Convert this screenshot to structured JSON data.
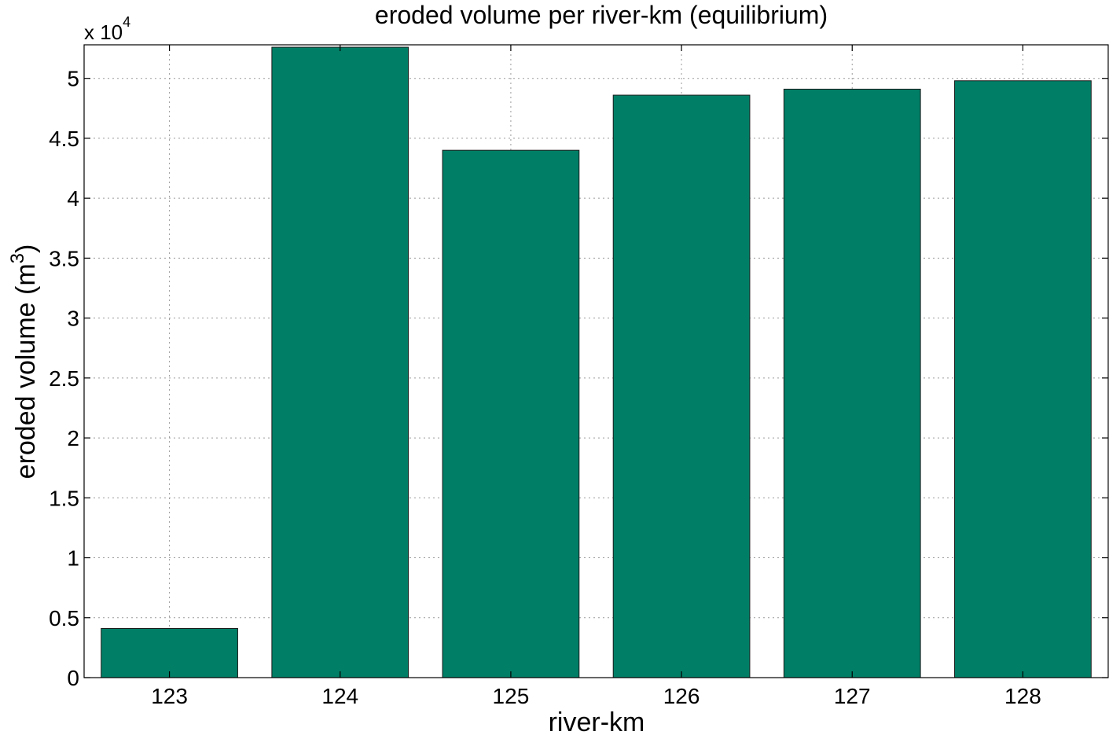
{
  "chart_data": {
    "type": "bar",
    "title": "eroded volume per river-km (equilibrium)",
    "xlabel": "river-km",
    "ylabel": "eroded volume (m",
    "ylabel_superscript": "3",
    "ylabel_suffix": ")",
    "y_multiplier": "x 10",
    "y_multiplier_exponent": "4",
    "categories": [
      "123",
      "124",
      "125",
      "126",
      "127",
      "128"
    ],
    "values": [
      4100,
      52600,
      44000,
      48600,
      49100,
      49800
    ],
    "ylim": [
      0,
      52800
    ],
    "yticks": [
      0,
      0.5,
      1,
      1.5,
      2,
      2.5,
      3,
      3.5,
      4,
      4.5,
      5
    ],
    "ytick_scale": 10000,
    "grid": true,
    "bar_color": "#007f66"
  }
}
